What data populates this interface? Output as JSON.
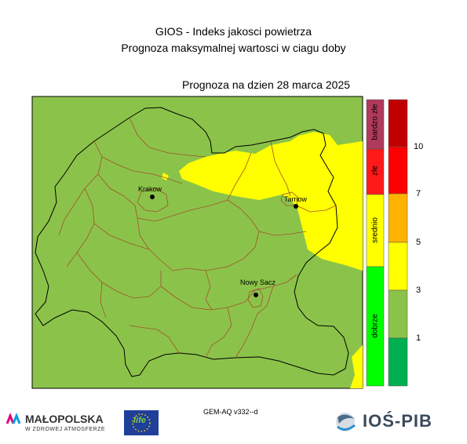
{
  "header": {
    "title": "GIOS - Indeks jakosci powietrza",
    "subtitle": "Prognoza maksymalnej wartosci w ciagu doby",
    "forecast_date": "Prognoza na dzien  28 marca 2025"
  },
  "map": {
    "cities": [
      {
        "name": "Krakow"
      },
      {
        "name": "Tarnow"
      },
      {
        "name": "Nowy Sacz"
      }
    ]
  },
  "legend": {
    "categories": [
      {
        "label": "bardzo złe",
        "color": "#b03a5b"
      },
      {
        "label": "złe",
        "color": "#ff1a1a"
      },
      {
        "label": "srednio",
        "color": "#ffff00"
      },
      {
        "label": "dobrze",
        "color": "#00ff00"
      }
    ],
    "scale_ticks": [
      "10",
      "7",
      "5",
      "3",
      "1"
    ],
    "scale_colors": [
      "#c00000",
      "#ff0000",
      "#ffb300",
      "#ffff00",
      "#8bc34a",
      "#00b050"
    ]
  },
  "colors": {
    "green_area": "#8bc34a",
    "yellow_area": "#ffff00",
    "border_black": "#000000",
    "border_brown": "#a0522d"
  },
  "footer": {
    "model": "GEM-AQ v332--d",
    "logo_malopolska": "MAŁOPOLSKA",
    "logo_malopolska_sub": "W ZDROWEJ ATMOSFERZE",
    "logo_life": "life",
    "logo_ios": "IOŚ-PIB"
  }
}
